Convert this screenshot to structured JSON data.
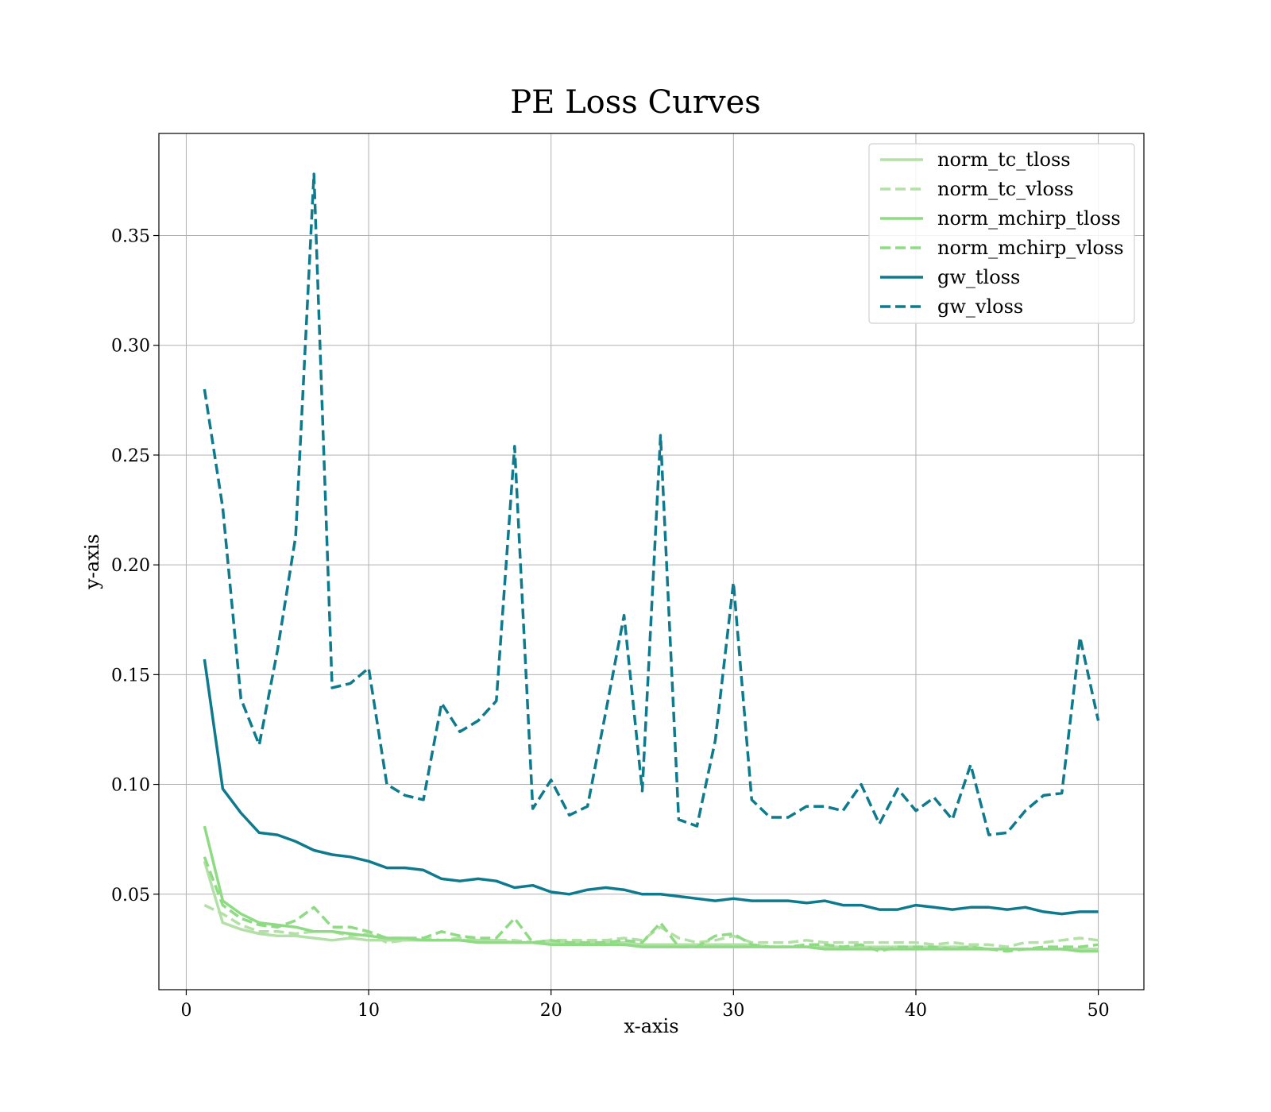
{
  "chart_data": {
    "type": "line",
    "title": "PE Loss Curves",
    "xlabel": "x-axis",
    "ylabel": "y-axis",
    "xlim": [
      -1.5,
      52.5
    ],
    "ylim": [
      0.0065,
      0.3965
    ],
    "xticks": [
      0,
      10,
      20,
      30,
      40,
      50
    ],
    "yticks": [
      0.05,
      0.1,
      0.15,
      0.2,
      0.25,
      0.3,
      0.35
    ],
    "xtick_labels": [
      "0",
      "10",
      "20",
      "30",
      "40",
      "50"
    ],
    "ytick_labels": [
      "0.05",
      "0.10",
      "0.15",
      "0.20",
      "0.25",
      "0.30",
      "0.35"
    ],
    "grid": true,
    "legend_position": "top-right",
    "x": [
      1,
      2,
      3,
      4,
      5,
      6,
      7,
      8,
      9,
      10,
      11,
      12,
      13,
      14,
      15,
      16,
      17,
      18,
      19,
      20,
      21,
      22,
      23,
      24,
      25,
      26,
      27,
      28,
      29,
      30,
      31,
      32,
      33,
      34,
      35,
      36,
      37,
      38,
      39,
      40,
      41,
      42,
      43,
      44,
      45,
      46,
      47,
      48,
      49,
      50
    ],
    "series": [
      {
        "name": "norm_tc_tloss",
        "color": "#b3e0a6",
        "dash": "solid",
        "values": [
          0.065,
          0.037,
          0.034,
          0.032,
          0.031,
          0.031,
          0.03,
          0.029,
          0.03,
          0.029,
          0.029,
          0.029,
          0.029,
          0.029,
          0.029,
          0.029,
          0.029,
          0.028,
          0.028,
          0.028,
          0.028,
          0.028,
          0.028,
          0.028,
          0.027,
          0.027,
          0.027,
          0.027,
          0.027,
          0.027,
          0.027,
          0.026,
          0.026,
          0.026,
          0.026,
          0.026,
          0.026,
          0.026,
          0.026,
          0.026,
          0.026,
          0.026,
          0.026,
          0.025,
          0.025,
          0.025,
          0.025,
          0.025,
          0.025,
          0.025
        ]
      },
      {
        "name": "norm_tc_vloss",
        "color": "#b3e0a6",
        "dash": "dashed",
        "values": [
          0.045,
          0.041,
          0.036,
          0.033,
          0.033,
          0.032,
          0.033,
          0.033,
          0.031,
          0.032,
          0.028,
          0.029,
          0.03,
          0.029,
          0.03,
          0.029,
          0.029,
          0.029,
          0.028,
          0.029,
          0.029,
          0.029,
          0.029,
          0.03,
          0.029,
          0.035,
          0.03,
          0.028,
          0.029,
          0.031,
          0.028,
          0.028,
          0.028,
          0.029,
          0.028,
          0.028,
          0.028,
          0.028,
          0.028,
          0.028,
          0.027,
          0.028,
          0.027,
          0.027,
          0.026,
          0.028,
          0.028,
          0.029,
          0.03,
          0.029
        ]
      },
      {
        "name": "norm_mchirp_tloss",
        "color": "#8edb84",
        "dash": "solid",
        "values": [
          0.081,
          0.047,
          0.041,
          0.037,
          0.036,
          0.035,
          0.033,
          0.033,
          0.032,
          0.031,
          0.03,
          0.03,
          0.029,
          0.029,
          0.029,
          0.028,
          0.028,
          0.028,
          0.028,
          0.027,
          0.027,
          0.027,
          0.027,
          0.027,
          0.026,
          0.026,
          0.026,
          0.026,
          0.026,
          0.026,
          0.026,
          0.026,
          0.026,
          0.026,
          0.025,
          0.025,
          0.025,
          0.025,
          0.025,
          0.025,
          0.025,
          0.025,
          0.025,
          0.025,
          0.025,
          0.025,
          0.025,
          0.025,
          0.024,
          0.024
        ]
      },
      {
        "name": "norm_mchirp_vloss",
        "color": "#8edb84",
        "dash": "dashed",
        "values": [
          0.067,
          0.045,
          0.039,
          0.036,
          0.035,
          0.038,
          0.044,
          0.035,
          0.035,
          0.033,
          0.03,
          0.03,
          0.03,
          0.033,
          0.031,
          0.03,
          0.03,
          0.039,
          0.028,
          0.029,
          0.028,
          0.028,
          0.028,
          0.029,
          0.028,
          0.037,
          0.026,
          0.026,
          0.031,
          0.032,
          0.027,
          0.026,
          0.026,
          0.027,
          0.027,
          0.026,
          0.027,
          0.024,
          0.026,
          0.026,
          0.026,
          0.025,
          0.026,
          0.025,
          0.024,
          0.025,
          0.026,
          0.026,
          0.026,
          0.027
        ]
      },
      {
        "name": "gw_tloss",
        "color": "#0e7a8d",
        "dash": "solid",
        "values": [
          0.157,
          0.098,
          0.087,
          0.078,
          0.077,
          0.074,
          0.07,
          0.068,
          0.067,
          0.065,
          0.062,
          0.062,
          0.061,
          0.057,
          0.056,
          0.057,
          0.056,
          0.053,
          0.054,
          0.051,
          0.05,
          0.052,
          0.053,
          0.052,
          0.05,
          0.05,
          0.049,
          0.048,
          0.047,
          0.048,
          0.047,
          0.047,
          0.047,
          0.046,
          0.047,
          0.045,
          0.045,
          0.043,
          0.043,
          0.045,
          0.044,
          0.043,
          0.044,
          0.044,
          0.043,
          0.044,
          0.042,
          0.041,
          0.042,
          0.042
        ]
      },
      {
        "name": "gw_vloss",
        "color": "#0e7a8d",
        "dash": "dashed",
        "values": [
          0.28,
          0.226,
          0.139,
          0.118,
          0.161,
          0.213,
          0.378,
          0.144,
          0.146,
          0.153,
          0.1,
          0.095,
          0.093,
          0.137,
          0.124,
          0.129,
          0.138,
          0.254,
          0.089,
          0.102,
          0.086,
          0.09,
          0.133,
          0.177,
          0.097,
          0.259,
          0.084,
          0.081,
          0.12,
          0.192,
          0.093,
          0.085,
          0.085,
          0.09,
          0.09,
          0.088,
          0.1,
          0.082,
          0.098,
          0.088,
          0.094,
          0.084,
          0.109,
          0.077,
          0.078,
          0.088,
          0.095,
          0.096,
          0.167,
          0.129
        ]
      }
    ]
  }
}
